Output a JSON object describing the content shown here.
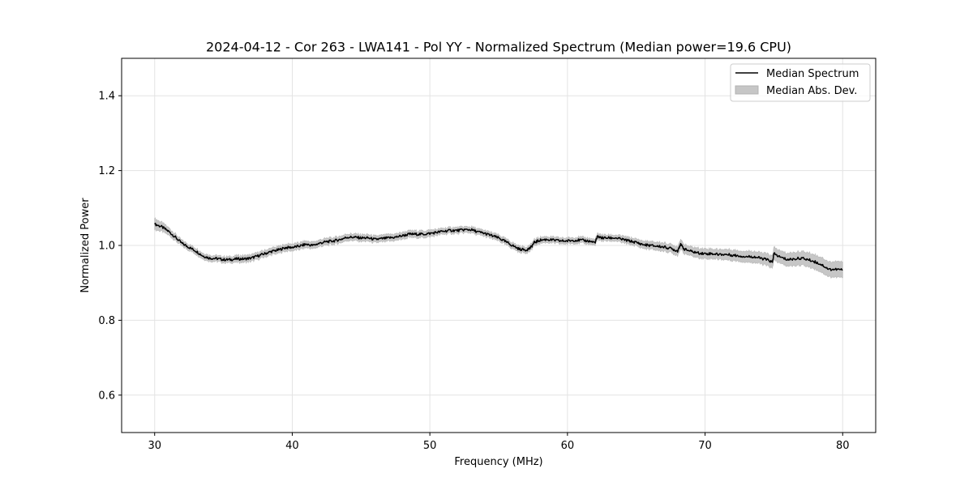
{
  "chart_data": {
    "type": "line",
    "title": "2024-04-12 - Cor 263 - LWA141 - Pol YY - Normalized Spectrum (Median power=19.6 CPU)",
    "xlabel": "Frequency (MHz)",
    "ylabel": "Normalized Power",
    "xlim": [
      27.6,
      82.4
    ],
    "ylim": [
      0.5,
      1.5
    ],
    "xticks": [
      30,
      40,
      50,
      60,
      70,
      80
    ],
    "yticks": [
      0.6,
      0.8,
      1.0,
      1.2,
      1.4
    ],
    "xtick_labels": [
      "30",
      "40",
      "50",
      "60",
      "70",
      "80"
    ],
    "ytick_labels": [
      "0.6",
      "0.8",
      "1.0",
      "1.2",
      "1.4"
    ],
    "grid": true,
    "legend_position": "top-right",
    "series": [
      {
        "name": "Median Spectrum",
        "kind": "line",
        "color": "#000000",
        "x": [
          30.0,
          30.5,
          31.0,
          31.5,
          32.0,
          32.5,
          33.0,
          33.5,
          34.0,
          34.5,
          35.0,
          35.5,
          36.0,
          36.5,
          37.0,
          37.5,
          38.0,
          38.5,
          39.0,
          39.5,
          40.0,
          40.5,
          41.0,
          41.5,
          42.0,
          42.5,
          43.0,
          43.5,
          44.0,
          44.5,
          45.0,
          45.5,
          46.0,
          46.5,
          47.0,
          47.5,
          48.0,
          48.5,
          49.0,
          49.5,
          50.0,
          50.5,
          51.0,
          51.5,
          52.0,
          52.5,
          53.0,
          53.5,
          54.0,
          54.5,
          55.0,
          55.5,
          56.0,
          56.5,
          57.0,
          57.3,
          57.6,
          58.0,
          58.5,
          59.0,
          59.5,
          60.0,
          60.5,
          61.0,
          61.5,
          62.0,
          62.2,
          62.5,
          63.0,
          63.5,
          64.0,
          64.5,
          65.0,
          65.5,
          66.0,
          66.5,
          67.0,
          67.5,
          68.0,
          68.2,
          68.5,
          69.0,
          69.5,
          70.0,
          70.5,
          71.0,
          71.5,
          72.0,
          72.5,
          73.0,
          73.5,
          74.0,
          74.5,
          74.9,
          75.0,
          75.5,
          76.0,
          76.5,
          77.0,
          77.5,
          78.0,
          78.5,
          79.0,
          79.5,
          80.0
        ],
        "y": [
          1.057,
          1.05,
          1.038,
          1.022,
          1.005,
          0.995,
          0.985,
          0.972,
          0.966,
          0.965,
          0.962,
          0.962,
          0.964,
          0.964,
          0.966,
          0.972,
          0.978,
          0.984,
          0.988,
          0.994,
          0.995,
          0.998,
          1.003,
          1.0,
          1.006,
          1.01,
          1.012,
          1.016,
          1.022,
          1.022,
          1.02,
          1.02,
          1.016,
          1.018,
          1.02,
          1.022,
          1.026,
          1.03,
          1.03,
          1.03,
          1.032,
          1.035,
          1.038,
          1.04,
          1.04,
          1.042,
          1.042,
          1.036,
          1.032,
          1.026,
          1.02,
          1.01,
          1.0,
          0.99,
          0.988,
          0.993,
          1.008,
          1.014,
          1.016,
          1.014,
          1.012,
          1.012,
          1.014,
          1.014,
          1.012,
          1.008,
          1.024,
          1.02,
          1.02,
          1.02,
          1.016,
          1.012,
          1.008,
          1.002,
          1.0,
          0.998,
          0.996,
          0.992,
          0.985,
          1.003,
          0.99,
          0.984,
          0.98,
          0.978,
          0.978,
          0.976,
          0.976,
          0.974,
          0.972,
          0.97,
          0.97,
          0.966,
          0.962,
          0.955,
          0.978,
          0.968,
          0.962,
          0.964,
          0.966,
          0.962,
          0.956,
          0.948,
          0.936,
          0.936,
          0.935
        ],
        "mad": [
          0.015,
          0.012,
          0.01,
          0.009,
          0.008,
          0.008,
          0.008,
          0.008,
          0.008,
          0.008,
          0.008,
          0.008,
          0.009,
          0.009,
          0.009,
          0.009,
          0.009,
          0.009,
          0.009,
          0.009,
          0.009,
          0.009,
          0.009,
          0.009,
          0.009,
          0.009,
          0.009,
          0.009,
          0.009,
          0.009,
          0.009,
          0.009,
          0.009,
          0.009,
          0.009,
          0.009,
          0.009,
          0.009,
          0.009,
          0.009,
          0.009,
          0.008,
          0.008,
          0.008,
          0.008,
          0.008,
          0.008,
          0.008,
          0.008,
          0.008,
          0.008,
          0.008,
          0.008,
          0.008,
          0.008,
          0.008,
          0.008,
          0.008,
          0.008,
          0.008,
          0.008,
          0.008,
          0.008,
          0.008,
          0.008,
          0.008,
          0.008,
          0.008,
          0.008,
          0.008,
          0.009,
          0.009,
          0.009,
          0.01,
          0.01,
          0.011,
          0.011,
          0.011,
          0.012,
          0.012,
          0.012,
          0.012,
          0.013,
          0.013,
          0.013,
          0.013,
          0.014,
          0.014,
          0.014,
          0.015,
          0.015,
          0.015,
          0.016,
          0.016,
          0.017,
          0.017,
          0.017,
          0.018,
          0.018,
          0.019,
          0.019,
          0.02,
          0.02,
          0.021,
          0.021
        ]
      },
      {
        "name": "Median Abs. Dev.",
        "kind": "band",
        "color": "#c6c6c6"
      }
    ]
  }
}
